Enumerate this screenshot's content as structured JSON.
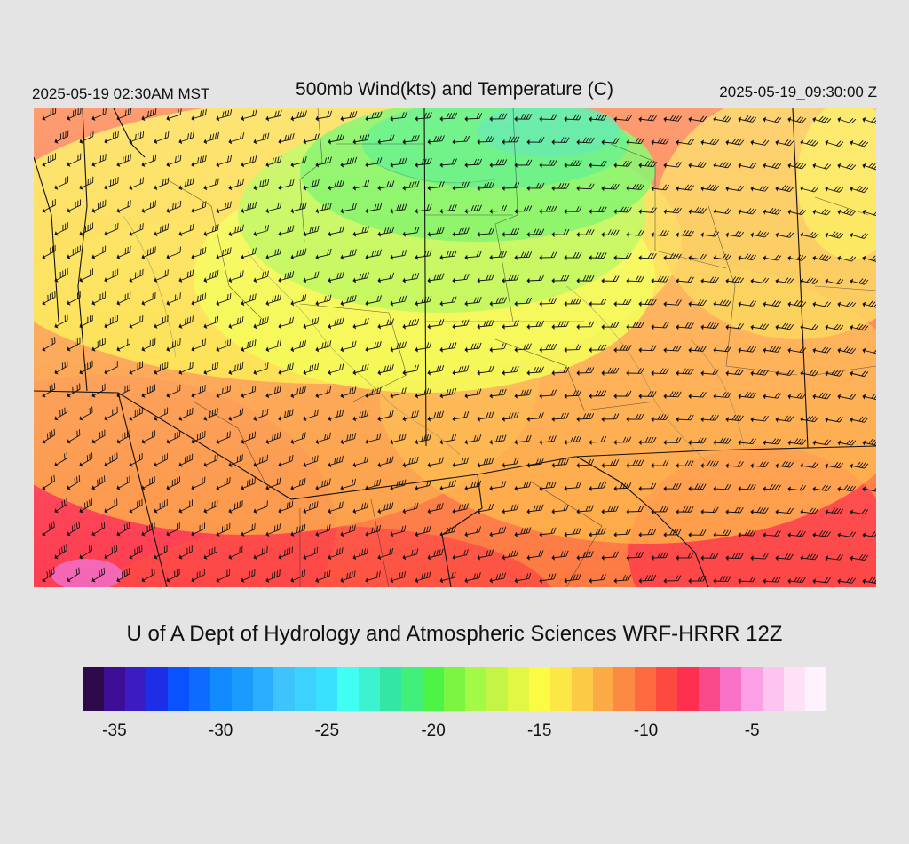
{
  "header": {
    "local_time": "2025-05-19 02:30AM MST",
    "title": "500mb Wind(kts) and Temperature (C)",
    "valid_time": "2025-05-19_09:30:00 Z"
  },
  "footer": {
    "credit": "U of A Dept of Hydrology and Atmospheric Sciences WRF-HRRR 12Z"
  },
  "colorbar": {
    "colors": [
      "#2e0a4a",
      "#3d0f96",
      "#3a1cc2",
      "#1e2ee6",
      "#0b52ff",
      "#0d6cff",
      "#1189ff",
      "#1a9cff",
      "#2aaefe",
      "#3ec4fb",
      "#3cd2fd",
      "#3ae1fe",
      "#40fef2",
      "#3cf3cf",
      "#33e6a6",
      "#40f07a",
      "#4df445",
      "#7bf442",
      "#a2fa46",
      "#c4f445",
      "#e2f743",
      "#fcfb43",
      "#fbe745",
      "#fcca45",
      "#fcaa45",
      "#fc8a43",
      "#fd6a40",
      "#fd4a40",
      "#fd3050",
      "#fa4a8c",
      "#fa72c8",
      "#fca0e6",
      "#fcc4ef",
      "#fee0f7",
      "#fdf2fd"
    ],
    "tick_labels": [
      "-35",
      "-30",
      "-25",
      "-20",
      "-15",
      "-10",
      "-5"
    ],
    "tick_values": [
      -35,
      -30,
      -25,
      -20,
      -15,
      -10,
      -5
    ],
    "range": [
      -36,
      -1
    ]
  },
  "map": {
    "field": "temperature_500mb",
    "wind_barbs": "wind_kts"
  }
}
